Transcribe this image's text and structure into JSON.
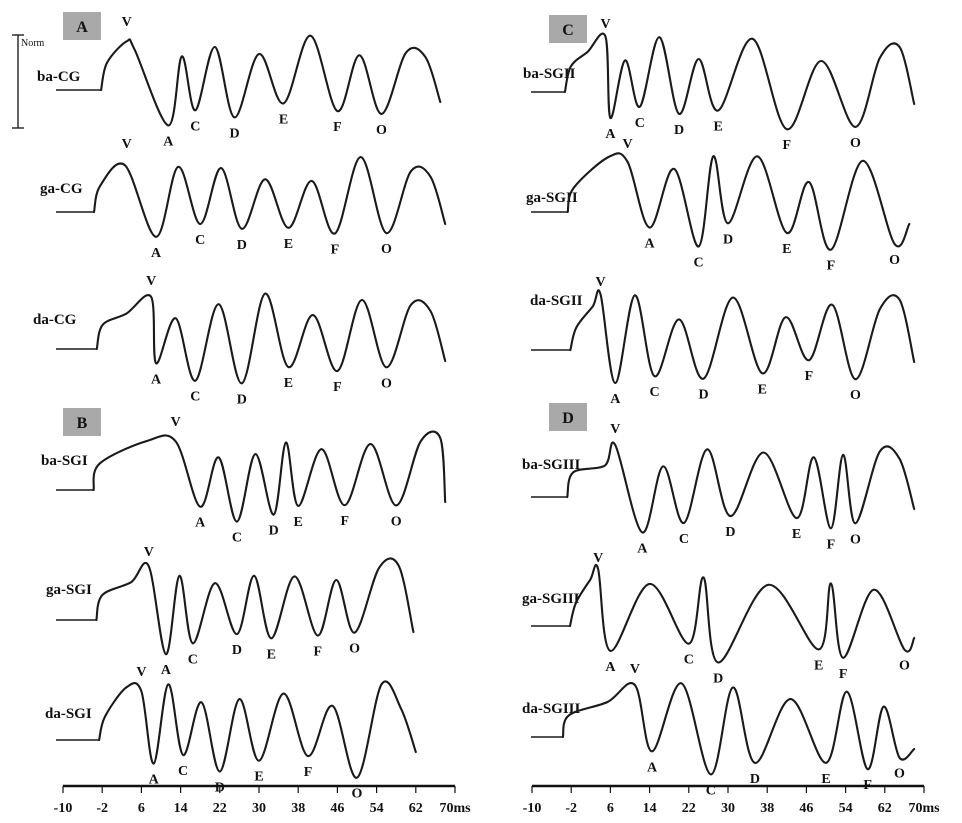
{
  "chart_data": {
    "type": "line",
    "scale_bar_label": "Norm",
    "x_ticks": [
      "-10",
      "-2",
      "6",
      "14",
      "22",
      "30",
      "38",
      "46",
      "54",
      "62",
      "70ms"
    ],
    "panels": [
      {
        "id": "A",
        "rows": [
          {
            "name": "ba-CG",
            "peaks": [
              [
                "V",
                3
              ],
              [
                "A",
                11.5
              ],
              [
                "C",
                17
              ],
              [
                "D",
                25
              ],
              [
                "E",
                35
              ],
              [
                "F",
                46
              ],
              [
                "O",
                55
              ]
            ]
          },
          {
            "name": "ga-CG",
            "peaks": [
              [
                "V",
                3
              ],
              [
                "A",
                9
              ],
              [
                "C",
                18
              ],
              [
                "D",
                26.5
              ],
              [
                "E",
                36
              ],
              [
                "F",
                45.5
              ],
              [
                "O",
                56
              ]
            ]
          },
          {
            "name": "da-CG",
            "peaks": [
              [
                "V",
                8
              ],
              [
                "A",
                9
              ],
              [
                "C",
                17
              ],
              [
                "D",
                26.5
              ],
              [
                "E",
                36
              ],
              [
                "F",
                46
              ],
              [
                "O",
                56
              ]
            ]
          }
        ]
      },
      {
        "id": "B",
        "rows": [
          {
            "name": "ba-SGI",
            "peaks": [
              [
                "V",
                13
              ],
              [
                "A",
                18
              ],
              [
                "C",
                25.5
              ],
              [
                "D",
                33
              ],
              [
                "E",
                38
              ],
              [
                "F",
                47.5
              ],
              [
                "O",
                58
              ]
            ]
          },
          {
            "name": "ga-SGI",
            "peaks": [
              [
                "V",
                7.5
              ],
              [
                "A",
                11
              ],
              [
                "C",
                16.5
              ],
              [
                "D",
                25.5
              ],
              [
                "E",
                32.5
              ],
              [
                "F",
                42
              ],
              [
                "O",
                49.5
              ]
            ]
          },
          {
            "name": "da-SGI",
            "peaks": [
              [
                "V",
                6
              ],
              [
                "A",
                8.5
              ],
              [
                "C",
                14.5
              ],
              [
                "D",
                22
              ],
              [
                "E",
                30
              ],
              [
                "F",
                40
              ],
              [
                "O",
                50
              ]
            ]
          }
        ]
      },
      {
        "id": "C",
        "rows": [
          {
            "name": "ba-SGII",
            "peaks": [
              [
                "V",
                5
              ],
              [
                "A",
                6
              ],
              [
                "C",
                12
              ],
              [
                "D",
                20
              ],
              [
                "E",
                28
              ],
              [
                "F",
                42
              ],
              [
                "O",
                56
              ]
            ]
          },
          {
            "name": "ga-SGII",
            "peaks": [
              [
                "V",
                9.5
              ],
              [
                "A",
                14
              ],
              [
                "C",
                24
              ],
              [
                "D",
                30
              ],
              [
                "E",
                42
              ],
              [
                "F",
                51
              ],
              [
                "O",
                64
              ]
            ]
          },
          {
            "name": "da-SGII",
            "peaks": [
              [
                "V",
                4
              ],
              [
                "A",
                7
              ],
              [
                "C",
                15
              ],
              [
                "D",
                25
              ],
              [
                "E",
                37
              ],
              [
                "F",
                46.5
              ],
              [
                "O",
                56
              ]
            ]
          }
        ]
      },
      {
        "id": "D",
        "rows": [
          {
            "name": "ba-SGIII",
            "peaks": [
              [
                "V",
                7
              ],
              [
                "A",
                12.5
              ],
              [
                "C",
                21
              ],
              [
                "D",
                30.5
              ],
              [
                "E",
                44
              ],
              [
                "F",
                51
              ],
              [
                "O",
                56
              ]
            ]
          },
          {
            "name": "ga-SGIII",
            "peaks": [
              [
                "V",
                3.5
              ],
              [
                "A",
                6
              ],
              [
                "C",
                22
              ],
              [
                "D",
                28
              ],
              [
                "E",
                48.5
              ],
              [
                "F",
                53.5
              ],
              [
                "O",
                66
              ]
            ]
          },
          {
            "name": "da-SGIII",
            "peaks": [
              [
                "V",
                11
              ],
              [
                "A",
                14.5
              ],
              [
                "C",
                26.5
              ],
              [
                "D",
                35.5
              ],
              [
                "E",
                50
              ],
              [
                "F",
                58.5
              ],
              [
                "O",
                65
              ]
            ]
          }
        ]
      }
    ]
  }
}
